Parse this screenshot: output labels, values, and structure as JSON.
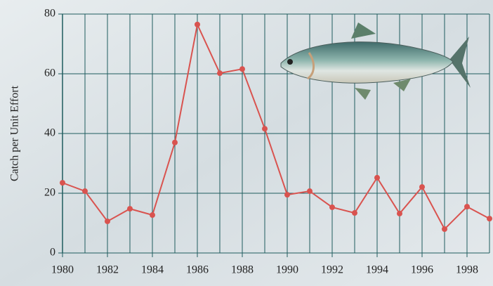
{
  "chart_data": {
    "type": "line",
    "y_label": "Catch per Unit Effort",
    "x": [
      1980,
      1981,
      1982,
      1983,
      1984,
      1985,
      1986,
      1987,
      1988,
      1989,
      1990,
      1991,
      1992,
      1993,
      1994,
      1995,
      1996,
      1997,
      1998,
      1999
    ],
    "series": [
      {
        "color": "#d9534f",
        "values": [
          23.5,
          20.7,
          10.6,
          14.8,
          12.7,
          37,
          76.5,
          60.2,
          61.6,
          41.6,
          19.5,
          20.7,
          15.3,
          13.4,
          25.2,
          13.2,
          22.1,
          8,
          15.5,
          11.5
        ]
      }
    ],
    "xlim": [
      1980,
      1999
    ],
    "xticks": [
      1980,
      1982,
      1984,
      1986,
      1988,
      1990,
      1992,
      1994,
      1996,
      1998
    ],
    "ylim": [
      0,
      80
    ],
    "yticks": [
      0,
      20,
      40,
      60,
      80
    ],
    "grid": true,
    "grid_color": "#1f5c5e"
  }
}
